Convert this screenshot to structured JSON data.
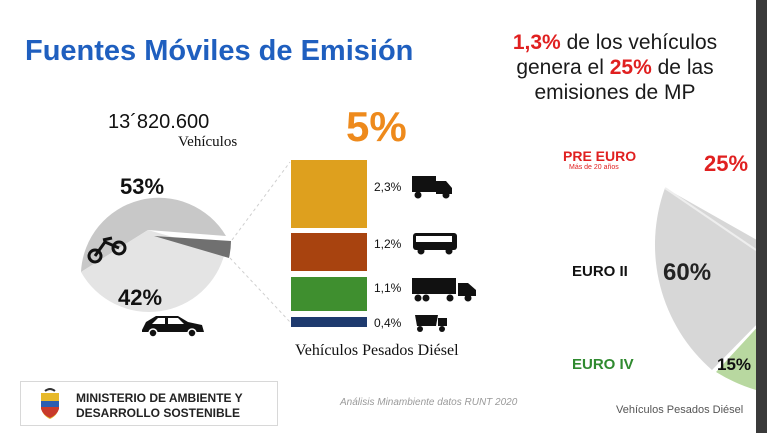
{
  "slide": {
    "title": "Fuentes Móviles de Emisión",
    "stat_line": {
      "pct1": "1,3%",
      "text1": "de los vehículos",
      "text2": "genera el",
      "pct2": "25%",
      "text3": "de las",
      "text4": "emisiones de MP"
    },
    "vehicle_count": "13´820.600",
    "vehicle_label": "Vehículos",
    "pie_left": {
      "slices": [
        {
          "label": "53%",
          "value": 53,
          "color": "#c8c8c8",
          "icon": "motorcycle-icon"
        },
        {
          "label": "42%",
          "value": 42,
          "color": "#e4e4e4",
          "icon": "car-icon"
        },
        {
          "label": "",
          "value": 5,
          "color": "#707070",
          "icon": ""
        }
      ]
    },
    "heavy_total": "5%",
    "heavy_bars": [
      {
        "label": "2,3%",
        "value": 2.3,
        "color": "#dea01e",
        "icon": "truck-icon"
      },
      {
        "label": "1,2%",
        "value": 1.2,
        "color": "#a8430f",
        "icon": "bus-icon"
      },
      {
        "label": "1,1%",
        "value": 1.1,
        "color": "#3f8f2f",
        "icon": "trailer-truck-icon"
      },
      {
        "label": "0,4%",
        "value": 0.4,
        "color": "#1e3a6e",
        "icon": "dump-truck-icon"
      }
    ],
    "heavy_label": "Vehículos Pesados Diésel",
    "ministry": {
      "line1": "MINISTERIO DE AMBIENTE Y",
      "line2": "DESARROLLO SOSTENIBLE"
    },
    "source_note": "Análisis Minambiente datos RUNT 2020",
    "right_pie": {
      "pre_euro_label": "PRE EURO",
      "pre_euro_sub": "Más de 20 años",
      "pre_euro_pct": "25%",
      "euro2_label": "EURO II",
      "euro2_pct": "60%",
      "euro4_label": "EURO IV",
      "euro4_pct": "15%",
      "caption": "Vehículos Pesados Diésel"
    }
  }
}
